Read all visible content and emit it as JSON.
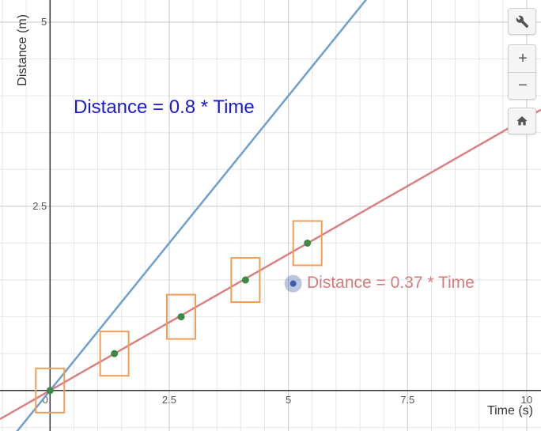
{
  "chart_data": {
    "type": "scatter",
    "xlabel": "Time (s)",
    "ylabel": "Distance (m)",
    "xlim": [
      -1.05,
      10.3
    ],
    "ylim": [
      -0.55,
      5.3
    ],
    "x_ticks": [
      {
        "value": 0,
        "label": "0"
      },
      {
        "value": 2.5,
        "label": "2.5"
      },
      {
        "value": 5,
        "label": "5"
      },
      {
        "value": 7.5,
        "label": "7.5"
      },
      {
        "value": 10,
        "label": "10"
      }
    ],
    "y_ticks": [
      {
        "value": 2.5,
        "label": "2.5"
      },
      {
        "value": 5,
        "label": "5"
      }
    ],
    "grid": true,
    "series": [
      {
        "label": "Distance = 0.8 * Time",
        "type": "line",
        "slope": 0.8,
        "color": "#6f9fd0",
        "label_color": "#1a1ad6"
      },
      {
        "label": "Distance = 0.37 * Time",
        "type": "line",
        "slope": 0.37,
        "color": "#d98080",
        "label_color": "#d97a7a"
      }
    ],
    "points": {
      "color": "#3a8a45",
      "box_color": "#f29d55",
      "x": [
        0,
        1.35,
        2.75,
        4.1,
        5.4
      ],
      "y": [
        0,
        0.5,
        1.0,
        1.5,
        2.0
      ]
    },
    "movable_point": {
      "x": 5.1,
      "y": 1.45,
      "color": "#3c5ba8"
    }
  },
  "controls": {
    "settings_icon": "wrench-icon",
    "zoom_in": "+",
    "zoom_out": "−",
    "home_icon": "home-icon"
  }
}
